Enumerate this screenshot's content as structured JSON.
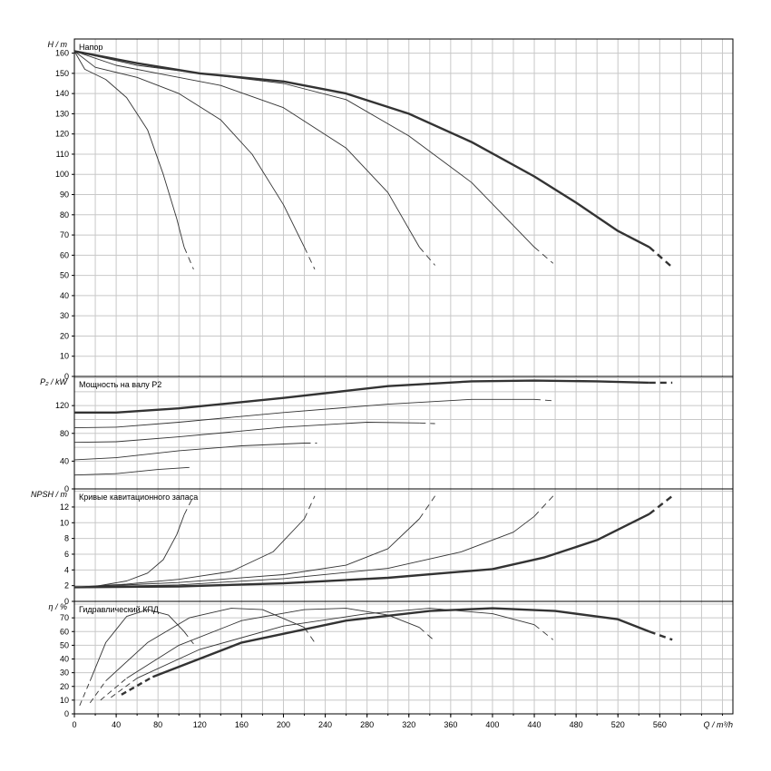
{
  "chart_data": {
    "type": "line",
    "x_axis": {
      "label": "Q / m³/h",
      "range": [
        0,
        630
      ],
      "ticks": [
        0,
        40,
        80,
        120,
        160,
        200,
        240,
        280,
        320,
        360,
        400,
        440,
        480,
        520,
        560
      ]
    },
    "panels": [
      {
        "id": "head",
        "title": "Напор",
        "ylabel": "H / m",
        "ylim": [
          0,
          167
        ],
        "ticks": [
          0,
          10,
          20,
          30,
          40,
          50,
          60,
          70,
          80,
          90,
          100,
          110,
          120,
          130,
          140,
          150,
          160
        ],
        "series": [
          {
            "style": "thin",
            "points": [
              [
                0,
                161
              ],
              [
                10,
                152
              ],
              [
                30,
                147
              ],
              [
                50,
                138
              ],
              [
                70,
                122
              ],
              [
                85,
                100
              ],
              [
                98,
                78
              ],
              [
                105,
                64
              ]
            ],
            "dashed_tail": [
              [
                105,
                64
              ],
              [
                114,
                53
              ]
            ]
          },
          {
            "style": "thin",
            "points": [
              [
                0,
                161
              ],
              [
                20,
                153
              ],
              [
                60,
                148
              ],
              [
                100,
                140
              ],
              [
                140,
                127
              ],
              [
                170,
                110
              ],
              [
                200,
                85
              ],
              [
                220,
                64
              ]
            ],
            "dashed_tail": [
              [
                220,
                64
              ],
              [
                230,
                53
              ]
            ]
          },
          {
            "style": "thin",
            "points": [
              [
                0,
                161
              ],
              [
                40,
                154
              ],
              [
                80,
                150
              ],
              [
                140,
                144
              ],
              [
                200,
                133
              ],
              [
                260,
                113
              ],
              [
                300,
                91
              ],
              [
                330,
                64
              ]
            ],
            "dashed_tail": [
              [
                330,
                64
              ],
              [
                345,
                55
              ]
            ]
          },
          {
            "style": "thin",
            "points": [
              [
                0,
                161
              ],
              [
                60,
                154
              ],
              [
                120,
                150
              ],
              [
                200,
                145
              ],
              [
                260,
                137
              ],
              [
                320,
                119
              ],
              [
                380,
                96
              ],
              [
                440,
                64
              ]
            ],
            "dashed_tail": [
              [
                440,
                64
              ],
              [
                458,
                56
              ]
            ]
          },
          {
            "style": "thick",
            "points": [
              [
                0,
                161
              ],
              [
                60,
                155
              ],
              [
                120,
                150
              ],
              [
                200,
                146
              ],
              [
                260,
                140
              ],
              [
                320,
                130
              ],
              [
                380,
                116
              ],
              [
                440,
                99
              ],
              [
                480,
                86
              ],
              [
                520,
                72
              ],
              [
                550,
                64
              ]
            ],
            "dashed_tail": [
              [
                550,
                64
              ],
              [
                572,
                54
              ]
            ]
          }
        ]
      },
      {
        "id": "power",
        "title": "Мощность на валу P2",
        "ylabel": "P₂ / kW",
        "ylim": [
          0,
          162
        ],
        "ticks": [
          0,
          40,
          80,
          120
        ],
        "series": [
          {
            "style": "thin",
            "points": [
              [
                0,
                20
              ],
              [
                40,
                22
              ],
              [
                80,
                28
              ],
              [
                110,
                31
              ]
            ]
          },
          {
            "style": "thin",
            "points": [
              [
                0,
                42
              ],
              [
                40,
                45
              ],
              [
                100,
                55
              ],
              [
                160,
                62
              ],
              [
                220,
                66
              ]
            ],
            "dashed_tail": [
              [
                220,
                66
              ],
              [
                232,
                66
              ]
            ]
          },
          {
            "style": "thin",
            "points": [
              [
                0,
                67
              ],
              [
                40,
                68
              ],
              [
                100,
                75
              ],
              [
                200,
                89
              ],
              [
                280,
                96
              ],
              [
                330,
                95
              ]
            ],
            "dashed_tail": [
              [
                330,
                95
              ],
              [
                345,
                94
              ]
            ]
          },
          {
            "style": "thin",
            "points": [
              [
                0,
                88
              ],
              [
                40,
                89
              ],
              [
                100,
                96
              ],
              [
                200,
                110
              ],
              [
                300,
                122
              ],
              [
                380,
                129
              ],
              [
                440,
                129
              ]
            ],
            "dashed_tail": [
              [
                440,
                129
              ],
              [
                458,
                127
              ]
            ]
          },
          {
            "style": "thick",
            "points": [
              [
                0,
                110
              ],
              [
                40,
                110
              ],
              [
                100,
                116
              ],
              [
                200,
                131
              ],
              [
                300,
                148
              ],
              [
                380,
                155
              ],
              [
                440,
                156
              ],
              [
                500,
                155
              ],
              [
                550,
                153
              ]
            ],
            "dashed_tail": [
              [
                550,
                153
              ],
              [
                572,
                153
              ]
            ]
          }
        ]
      },
      {
        "id": "npsh",
        "title": "Кривые кавитационного запаса",
        "ylabel": "NPSH / m",
        "ylim": [
          0,
          14.3
        ],
        "ticks": [
          0,
          2,
          4,
          6,
          8,
          10,
          12
        ],
        "series": [
          {
            "style": "thin",
            "points": [
              [
                0,
                1.8
              ],
              [
                20,
                1.9
              ],
              [
                50,
                2.6
              ],
              [
                70,
                3.6
              ],
              [
                85,
                5.3
              ],
              [
                98,
                8.5
              ],
              [
                105,
                11.0
              ]
            ],
            "dashed_tail": [
              [
                105,
                11.0
              ],
              [
                114,
                13.4
              ]
            ]
          },
          {
            "style": "thin",
            "points": [
              [
                0,
                1.8
              ],
              [
                50,
                2.2
              ],
              [
                100,
                2.8
              ],
              [
                150,
                3.8
              ],
              [
                190,
                6.3
              ],
              [
                220,
                10.5
              ]
            ],
            "dashed_tail": [
              [
                220,
                10.5
              ],
              [
                230,
                13.4
              ]
            ]
          },
          {
            "style": "thin",
            "points": [
              [
                0,
                1.8
              ],
              [
                100,
                2.4
              ],
              [
                200,
                3.4
              ],
              [
                260,
                4.6
              ],
              [
                300,
                6.7
              ],
              [
                330,
                10.5
              ]
            ],
            "dashed_tail": [
              [
                330,
                10.5
              ],
              [
                345,
                13.4
              ]
            ]
          },
          {
            "style": "thin",
            "points": [
              [
                0,
                1.8
              ],
              [
                100,
                2.1
              ],
              [
                200,
                2.9
              ],
              [
                300,
                4.2
              ],
              [
                370,
                6.3
              ],
              [
                420,
                8.8
              ],
              [
                440,
                10.8
              ]
            ],
            "dashed_tail": [
              [
                440,
                10.8
              ],
              [
                458,
                13.4
              ]
            ]
          },
          {
            "style": "thick",
            "points": [
              [
                0,
                1.8
              ],
              [
                100,
                1.9
              ],
              [
                200,
                2.3
              ],
              [
                300,
                3.0
              ],
              [
                400,
                4.1
              ],
              [
                450,
                5.6
              ],
              [
                500,
                7.8
              ],
              [
                550,
                11.1
              ]
            ],
            "dashed_tail": [
              [
                550,
                11.1
              ],
              [
                572,
                13.4
              ]
            ]
          }
        ]
      },
      {
        "id": "efficiency",
        "title": "Гидравлический КПД",
        "ylabel": "η / %",
        "ylim": [
          0,
          82
        ],
        "ticks": [
          0,
          10,
          20,
          30,
          40,
          50,
          60,
          70
        ],
        "series": [
          {
            "style": "thin",
            "points": [
              [
                15,
                24
              ],
              [
                30,
                52
              ],
              [
                50,
                71
              ],
              [
                70,
                76
              ],
              [
                90,
                72
              ],
              [
                105,
                60
              ]
            ],
            "dashed_tail": [
              [
                105,
                60
              ],
              [
                114,
                51
              ]
            ],
            "dashed_head": [
              [
                5,
                6
              ],
              [
                15,
                24
              ]
            ]
          },
          {
            "style": "thin",
            "points": [
              [
                30,
                24
              ],
              [
                70,
                52
              ],
              [
                110,
                70
              ],
              [
                150,
                77
              ],
              [
                180,
                76
              ],
              [
                220,
                63
              ]
            ],
            "dashed_tail": [
              [
                220,
                63
              ],
              [
                230,
                52
              ]
            ],
            "dashed_head": [
              [
                15,
                8
              ],
              [
                30,
                24
              ]
            ]
          },
          {
            "style": "thin",
            "points": [
              [
                50,
                26
              ],
              [
                100,
                50
              ],
              [
                160,
                68
              ],
              [
                220,
                76
              ],
              [
                260,
                77
              ],
              [
                300,
                72
              ],
              [
                330,
                63
              ]
            ],
            "dashed_tail": [
              [
                330,
                63
              ],
              [
                345,
                53
              ]
            ],
            "dashed_head": [
              [
                25,
                10
              ],
              [
                50,
                26
              ]
            ]
          },
          {
            "style": "thin",
            "points": [
              [
                60,
                26
              ],
              [
                120,
                47
              ],
              [
                200,
                64
              ],
              [
                280,
                73
              ],
              [
                340,
                77
              ],
              [
                400,
                73
              ],
              [
                440,
                65
              ]
            ],
            "dashed_tail": [
              [
                440,
                65
              ],
              [
                458,
                54
              ]
            ],
            "dashed_head": [
              [
                35,
                12
              ],
              [
                60,
                26
              ]
            ]
          },
          {
            "style": "thick",
            "points": [
              [
                75,
                27
              ],
              [
                160,
                52
              ],
              [
                260,
                68
              ],
              [
                340,
                75
              ],
              [
                400,
                77
              ],
              [
                460,
                75
              ],
              [
                520,
                69
              ],
              [
                550,
                60
              ]
            ],
            "dashed_tail": [
              [
                550,
                60
              ],
              [
                572,
                54
              ]
            ],
            "dashed_head": [
              [
                45,
                14
              ],
              [
                75,
                27
              ]
            ]
          }
        ]
      }
    ]
  }
}
